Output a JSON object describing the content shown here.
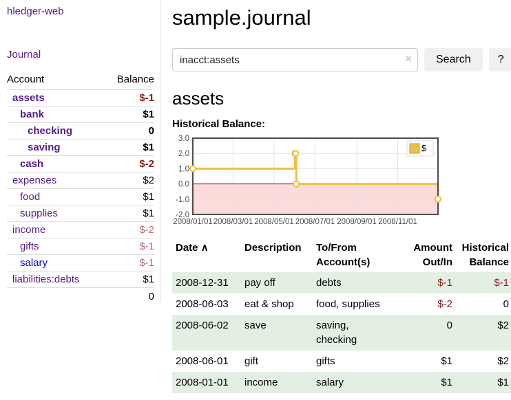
{
  "app": {
    "brand": "hledger-web",
    "journal_label": "Journal"
  },
  "sidebar": {
    "header": {
      "account": "Account",
      "balance": "Balance"
    },
    "accounts": [
      {
        "name": "assets",
        "balance": "$-1"
      },
      {
        "name": "bank",
        "balance": "$1"
      },
      {
        "name": "checking",
        "balance": "0"
      },
      {
        "name": "saving",
        "balance": "$1"
      },
      {
        "name": "cash",
        "balance": "$-2"
      },
      {
        "name": "expenses",
        "balance": "$2"
      },
      {
        "name": "food",
        "balance": "$1"
      },
      {
        "name": "supplies",
        "balance": "$1"
      },
      {
        "name": "income",
        "balance": "$-2"
      },
      {
        "name": "gifts",
        "balance": "$-1"
      },
      {
        "name": "salary",
        "balance": "$-1"
      },
      {
        "name": "liabilities:debts",
        "balance": "$1"
      }
    ],
    "total": "0"
  },
  "main": {
    "title": "sample.journal",
    "search": {
      "value": "inacct:assets",
      "clear_icon": "×",
      "button_label": "Search",
      "help_label": "?"
    },
    "account_heading": "assets",
    "chart_label": "Historical Balance:"
  },
  "chart_data": {
    "type": "line",
    "step": true,
    "title": "Historical Balance:",
    "series": [
      {
        "name": "$",
        "color": "#edc240",
        "points": [
          [
            "2008-01-01",
            1
          ],
          [
            "2008-06-01",
            2
          ],
          [
            "2008-06-02",
            2
          ],
          [
            "2008-06-03",
            0
          ],
          [
            "2008-12-31",
            -1
          ]
        ]
      }
    ],
    "x_range": [
      "2008-01-01",
      "2008-12-31"
    ],
    "x_ticks": [
      "2008/01/01",
      "2008/03/01",
      "2008/05/01",
      "2008/07/01",
      "2008/09/01",
      "2008/11/01"
    ],
    "y_ticks": [
      3.0,
      2.0,
      1.0,
      0.0,
      -1.0,
      -2.0
    ],
    "ylim": [
      -2,
      3
    ],
    "grid": true,
    "legend_position": "top-right",
    "legend_label": "$",
    "negative_region_color": "#fcdbdb",
    "zero_line_color": "#8b0000",
    "grid_color": "#e3e3e3",
    "border_color": "#4d4d4d"
  },
  "register": {
    "headers": {
      "date": "Date",
      "sort_icon": "∧",
      "description": "Description",
      "to_from": "To/From\nAccount(s)",
      "amount": "Amount\nOut/In",
      "historical": "Historical\nBalance"
    },
    "rows": [
      {
        "date": "2008-12-31",
        "description": "pay off",
        "to_from": "debts",
        "amount": "$-1",
        "historical": "$-1"
      },
      {
        "date": "2008-06-03",
        "description": "eat & shop",
        "to_from": "food, supplies",
        "amount": "$-2",
        "historical": "0"
      },
      {
        "date": "2008-06-02",
        "description": "save",
        "to_from": "saving,\nchecking",
        "amount": "0",
        "historical": "$2"
      },
      {
        "date": "2008-06-01",
        "description": "gift",
        "to_from": "gifts",
        "amount": "$1",
        "historical": "$2"
      },
      {
        "date": "2008-01-01",
        "description": "income",
        "to_from": "salary",
        "amount": "$1",
        "historical": "$1"
      }
    ]
  }
}
